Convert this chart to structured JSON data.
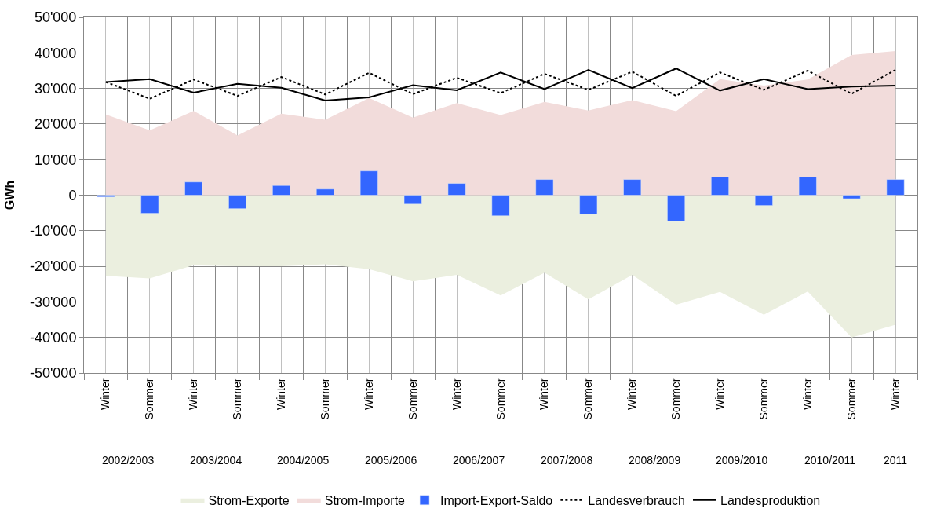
{
  "chart_data": {
    "type": "area",
    "ylabel": "GWh",
    "categories": [
      "Winter",
      "Sommer",
      "Winter",
      "Sommer",
      "Winter",
      "Sommer",
      "Winter",
      "Sommer",
      "Winter",
      "Sommer",
      "Winter",
      "Sommer",
      "Winter",
      "Sommer",
      "Winter",
      "Sommer",
      "Winter",
      "Sommer",
      "Winter"
    ],
    "annotations": [
      "2002/2003",
      "2003/2004",
      "2004/2005",
      "2005/2006",
      "2006/2007",
      "2007/2008",
      "2008/2009",
      "2009/2010",
      "2010/2011",
      "2011"
    ],
    "series": [
      {
        "name": "Strom-Exporte",
        "color": "#ebefdf",
        "values": [
          -22700,
          -23400,
          -19700,
          -20000,
          -20000,
          -19400,
          -20800,
          -24200,
          -22400,
          -28200,
          -21800,
          -29300,
          -22400,
          -30800,
          -27200,
          -33600,
          -27100,
          -40000,
          -36400
        ]
      },
      {
        "name": "Strom-Importe",
        "color": "#f2dcdb",
        "values": [
          22700,
          18200,
          23700,
          16800,
          22900,
          21200,
          27300,
          21800,
          25900,
          22500,
          26200,
          23800,
          26700,
          23600,
          32600,
          30800,
          32500,
          39400,
          40500
        ]
      },
      {
        "name": "Import-Export-Saldo",
        "type": "bar",
        "color": "#3366ff",
        "values": [
          -500,
          -5100,
          3700,
          -3800,
          2700,
          1700,
          6800,
          -2500,
          3300,
          -5800,
          4400,
          -5400,
          4400,
          -7400,
          5100,
          -2900,
          5100,
          -1000,
          4400
        ]
      },
      {
        "name": "Landesverbrauch",
        "type": "line",
        "color": "#000000",
        "line_style": "dotted",
        "values": [
          31800,
          27100,
          32500,
          27900,
          33200,
          28300,
          34400,
          28400,
          33000,
          28700,
          34100,
          29600,
          34700,
          27900,
          34500,
          29600,
          35000,
          28500,
          35200
        ]
      },
      {
        "name": "Landesproduktion",
        "type": "line",
        "color": "#000000",
        "line_style": "solid",
        "values": [
          31800,
          32600,
          28800,
          31300,
          30200,
          26600,
          27500,
          30900,
          29500,
          34500,
          29800,
          35200,
          30100,
          35600,
          29400,
          32600,
          29800,
          30500,
          30800
        ]
      }
    ],
    "ylim": [
      -50000,
      50000
    ],
    "yticks": [
      {
        "value": -50000,
        "label": "-50'000"
      },
      {
        "value": -40000,
        "label": "-40'000"
      },
      {
        "value": -30000,
        "label": "-30'000"
      },
      {
        "value": -20000,
        "label": "-20'000"
      },
      {
        "value": -10000,
        "label": "-10'000"
      },
      0,
      {
        "value": 10000,
        "label": "10'000"
      },
      {
        "value": 20000,
        "label": "20'000"
      },
      {
        "value": 30000,
        "label": "30'000"
      },
      {
        "value": 40000,
        "label": "40'000"
      },
      {
        "value": 50000,
        "label": "50'000"
      }
    ],
    "grid": true,
    "legend": "bottom"
  }
}
